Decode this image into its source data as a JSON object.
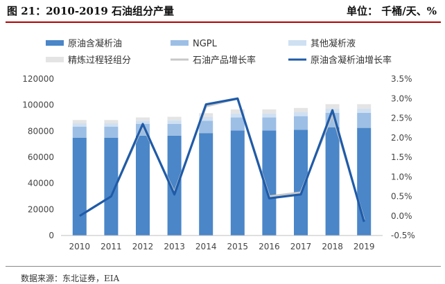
{
  "header": {
    "title": "图 21：2010-2019 石油组分产量",
    "unit": "单位：  千桶/天、%"
  },
  "footer": {
    "source": "数据来源：东北证券，EIA"
  },
  "colors": {
    "condensate": "#4a86c8",
    "ngpl": "#9dbfe5",
    "other_condensate": "#cfe0f2",
    "refinery": "#e4e4e4",
    "growth_line": "#1f5ba8"
  },
  "chart_data": {
    "type": "bar",
    "stacked": true,
    "categories": [
      "2010",
      "2011",
      "2012",
      "2013",
      "2014",
      "2015",
      "2016",
      "2017",
      "2018",
      "2019"
    ],
    "series": [
      {
        "name": "原油含凝析油",
        "type": "bar",
        "axis": "left",
        "values": [
          75000,
          75000,
          76500,
          76500,
          78500,
          80500,
          80500,
          81000,
          83000,
          82500
        ]
      },
      {
        "name": "NGPL",
        "type": "bar",
        "axis": "left",
        "values": [
          8500,
          8500,
          9000,
          9000,
          9500,
          10000,
          10000,
          10500,
          11000,
          11500
        ]
      },
      {
        "name": "其他凝析液",
        "type": "bar",
        "axis": "left",
        "values": [
          2500,
          2500,
          2500,
          2700,
          2800,
          3000,
          3000,
          3000,
          3200,
          3200
        ]
      },
      {
        "name": "精炼过程轻组分",
        "type": "bar",
        "axis": "left",
        "values": [
          2500,
          2500,
          2500,
          2800,
          3000,
          3200,
          3200,
          3300,
          3500,
          3500
        ]
      },
      {
        "name": "石油产品增长率",
        "type": "line",
        "axis": "right",
        "values": [
          0.0,
          0.5,
          2.3,
          0.6,
          2.8,
          3.0,
          0.5,
          0.6,
          2.6,
          -0.1
        ]
      },
      {
        "name": "原油含凝析油增长率",
        "type": "line",
        "axis": "right",
        "values": [
          0.0,
          0.5,
          2.35,
          0.55,
          2.85,
          3.0,
          0.45,
          0.55,
          2.7,
          -0.15
        ]
      }
    ],
    "y_left": {
      "min": 0,
      "max": 120000,
      "ticks": [
        "0",
        "20000",
        "40000",
        "60000",
        "80000",
        "100000",
        "120000"
      ]
    },
    "y_right": {
      "min": -0.5,
      "max": 3.5,
      "ticks": [
        "-0.5%",
        "0.0%",
        "0.5%",
        "1.0%",
        "1.5%",
        "2.0%",
        "2.5%",
        "3.0%",
        "3.5%"
      ]
    },
    "legend_position": "top",
    "grid": false
  }
}
